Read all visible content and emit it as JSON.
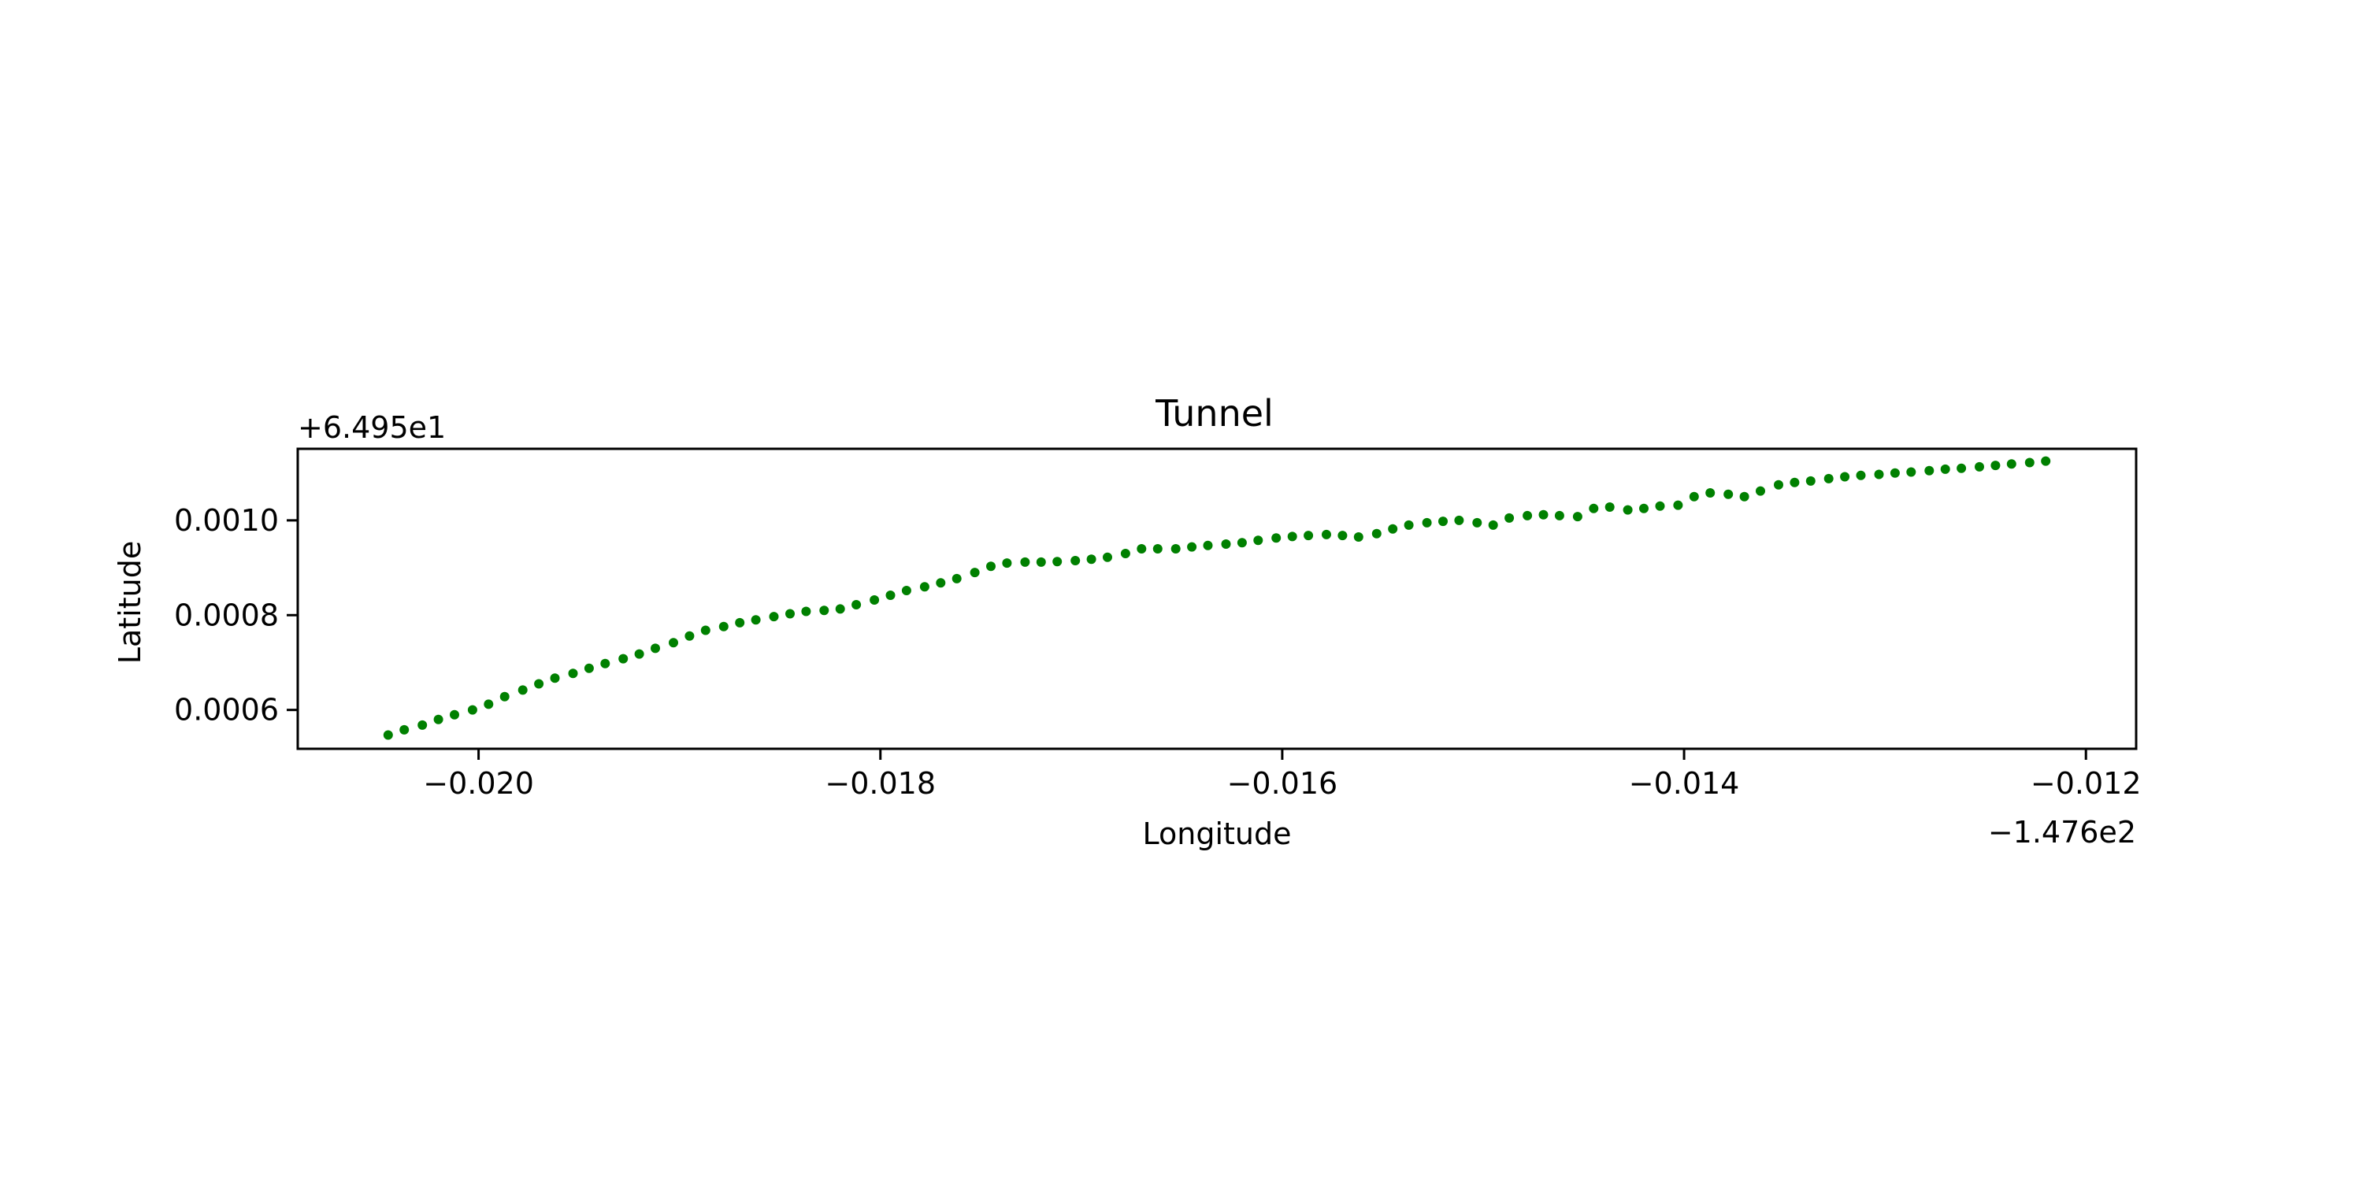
{
  "chart_data": {
    "type": "scatter",
    "title": "Tunnel",
    "xlabel": "Longitude",
    "ylabel": "Latitude",
    "x_offset_label": "−1.476e2",
    "y_offset_label": "+6.495e1",
    "xlim": [
      -0.0209,
      -0.01175
    ],
    "ylim": [
      0.000518,
      0.001151
    ],
    "xticks": [
      -0.02,
      -0.018,
      -0.016,
      -0.014,
      -0.012
    ],
    "xtick_labels": [
      "−0.020",
      "−0.018",
      "−0.016",
      "−0.014",
      "−0.012"
    ],
    "yticks": [
      0.0006,
      0.0008,
      0.001
    ],
    "ytick_labels": [
      "0.0006",
      "0.0008",
      "0.0010"
    ],
    "grid": false,
    "legend": "none",
    "colors": {
      "points": "#008000",
      "axes": "#000000",
      "background": "#ffffff"
    },
    "series": [
      {
        "x": [
          -0.02045,
          -0.02037,
          -0.02028,
          -0.0202,
          -0.02012,
          -0.02003,
          -0.01995,
          -0.01987,
          -0.01978,
          -0.0197,
          -0.01962,
          -0.01953,
          -0.01945,
          -0.01937,
          -0.01928,
          -0.0192,
          -0.01912,
          -0.01903,
          -0.01895,
          -0.01887,
          -0.01878,
          -0.0187,
          -0.01862,
          -0.01853,
          -0.01845,
          -0.01837,
          -0.01828,
          -0.0182,
          -0.01812,
          -0.01803,
          -0.01795,
          -0.01787,
          -0.01778,
          -0.0177,
          -0.01762,
          -0.01753,
          -0.01745,
          -0.01737,
          -0.01728,
          -0.0172,
          -0.01712,
          -0.01703,
          -0.01695,
          -0.01687,
          -0.01678,
          -0.0167,
          -0.01662,
          -0.01653,
          -0.01645,
          -0.01637,
          -0.01628,
          -0.0162,
          -0.01612,
          -0.01603,
          -0.01595,
          -0.01587,
          -0.01578,
          -0.0157,
          -0.01562,
          -0.01553,
          -0.01545,
          -0.01537,
          -0.01528,
          -0.0152,
          -0.01512,
          -0.01503,
          -0.01495,
          -0.01487,
          -0.01478,
          -0.0147,
          -0.01462,
          -0.01453,
          -0.01445,
          -0.01437,
          -0.01428,
          -0.0142,
          -0.01412,
          -0.01403,
          -0.01395,
          -0.01387,
          -0.01378,
          -0.0137,
          -0.01362,
          -0.01353,
          -0.01345,
          -0.01337,
          -0.01328,
          -0.0132,
          -0.01312,
          -0.01303,
          -0.01295,
          -0.01287,
          -0.01278,
          -0.0127,
          -0.01262,
          -0.01253,
          -0.01245,
          -0.01237,
          -0.01228,
          -0.0122
        ],
        "y": [
          0.000547,
          0.000558,
          0.000568,
          0.00058,
          0.00059,
          0.0006,
          0.000612,
          0.000628,
          0.000642,
          0.000655,
          0.000667,
          0.000677,
          0.000688,
          0.000698,
          0.000708,
          0.000718,
          0.00073,
          0.000742,
          0.000756,
          0.000768,
          0.000776,
          0.000784,
          0.00079,
          0.000797,
          0.000803,
          0.000808,
          0.00081,
          0.000813,
          0.000822,
          0.000832,
          0.000842,
          0.000852,
          0.00086,
          0.000868,
          0.000877,
          0.00089,
          0.000903,
          0.00091,
          0.000912,
          0.000912,
          0.000913,
          0.000915,
          0.000918,
          0.000922,
          0.00093,
          0.00094,
          0.00094,
          0.00094,
          0.000944,
          0.000947,
          0.00095,
          0.000953,
          0.000958,
          0.000963,
          0.000966,
          0.000968,
          0.00097,
          0.000968,
          0.000965,
          0.000972,
          0.000982,
          0.00099,
          0.000995,
          0.000998,
          0.001,
          0.000995,
          0.00099,
          0.001005,
          0.00101,
          0.001012,
          0.00101,
          0.001008,
          0.001025,
          0.001028,
          0.001022,
          0.001025,
          0.00103,
          0.001032,
          0.00105,
          0.001058,
          0.001055,
          0.00105,
          0.001062,
          0.001075,
          0.00108,
          0.001083,
          0.001088,
          0.001092,
          0.001095,
          0.001097,
          0.0011,
          0.001102,
          0.001105,
          0.001108,
          0.00111,
          0.001113,
          0.001116,
          0.001119,
          0.001122,
          0.001125
        ]
      }
    ]
  }
}
